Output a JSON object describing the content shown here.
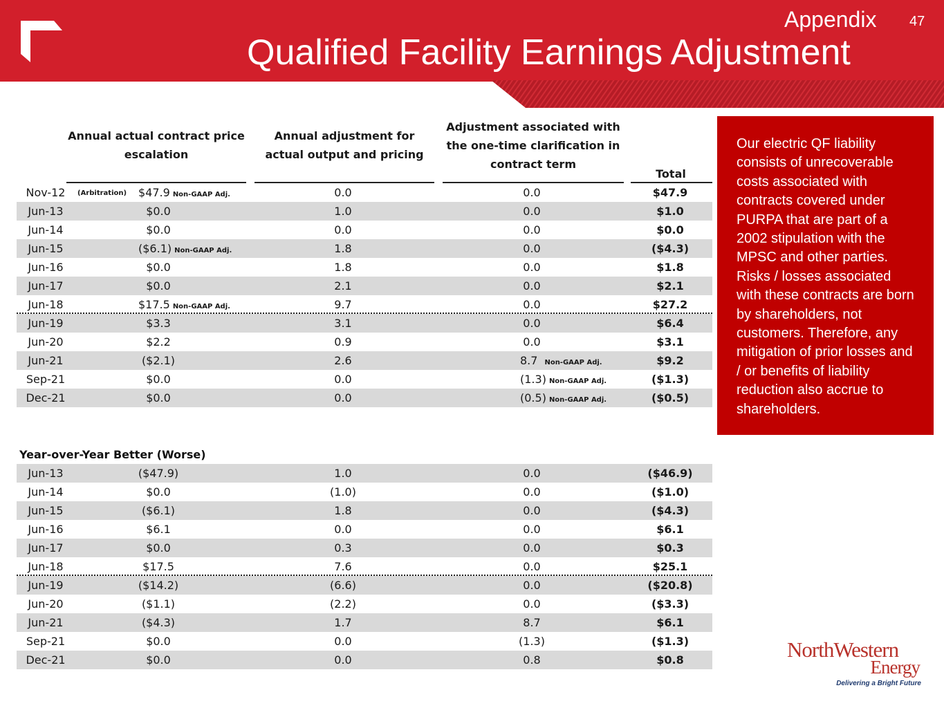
{
  "header": {
    "section": "Appendix",
    "page_number": "47",
    "title": "Qualified Facility Earnings Adjustment"
  },
  "columns": {
    "c1": "Annual actual contract price escalation",
    "c2": "Annual adjustment for actual output and pricing",
    "c3": "Adjustment associated with the one-time clarification in contract term",
    "total": "Total"
  },
  "notes": {
    "non_gaap": "Non-GAAP Adj.",
    "arbitration": "(Arbitration)"
  },
  "table1": [
    {
      "date": "Nov-12",
      "c1": "$47.9",
      "c2": "0.0",
      "c3": "0.0",
      "total": "$47.9"
    },
    {
      "date": "Jun-13",
      "c1": "$0.0",
      "c2": "1.0",
      "c3": "0.0",
      "total": "$1.0"
    },
    {
      "date": "Jun-14",
      "c1": "$0.0",
      "c2": "0.0",
      "c3": "0.0",
      "total": "$0.0"
    },
    {
      "date": "Jun-15",
      "c1": "($6.1)",
      "c2": "1.8",
      "c3": "0.0",
      "total": "($4.3)"
    },
    {
      "date": "Jun-16",
      "c1": "$0.0",
      "c2": "1.8",
      "c3": "0.0",
      "total": "$1.8"
    },
    {
      "date": "Jun-17",
      "c1": "$0.0",
      "c2": "2.1",
      "c3": "0.0",
      "total": "$2.1"
    },
    {
      "date": "Jun-18",
      "c1": "$17.5",
      "c2": "9.7",
      "c3": "0.0",
      "total": "$27.2"
    },
    {
      "date": "Jun-19",
      "c1": "$3.3",
      "c2": "3.1",
      "c3": "0.0",
      "total": "$6.4"
    },
    {
      "date": "Jun-20",
      "c1": "$2.2",
      "c2": "0.9",
      "c3": "0.0",
      "total": "$3.1"
    },
    {
      "date": "Jun-21",
      "c1": "($2.1)",
      "c2": "2.6",
      "c3": "8.7",
      "total": "$9.2"
    },
    {
      "date": "Sep-21",
      "c1": "$0.0",
      "c2": "0.0",
      "c3": "(1.3)",
      "total": "($1.3)"
    },
    {
      "date": "Dec-21",
      "c1": "$0.0",
      "c2": "0.0",
      "c3": "(0.5)",
      "total": "($0.5)"
    }
  ],
  "yoy": {
    "title": "Year-over-Year Better (Worse)",
    "rows": [
      {
        "date": "Jun-13",
        "c1": "($47.9)",
        "c2": "1.0",
        "c3": "0.0",
        "total": "($46.9)"
      },
      {
        "date": "Jun-14",
        "c1": "$0.0",
        "c2": "(1.0)",
        "c3": "0.0",
        "total": "($1.0)"
      },
      {
        "date": "Jun-15",
        "c1": "($6.1)",
        "c2": "1.8",
        "c3": "0.0",
        "total": "($4.3)"
      },
      {
        "date": "Jun-16",
        "c1": "$6.1",
        "c2": "0.0",
        "c3": "0.0",
        "total": "$6.1"
      },
      {
        "date": "Jun-17",
        "c1": "$0.0",
        "c2": "0.3",
        "c3": "0.0",
        "total": "$0.3"
      },
      {
        "date": "Jun-18",
        "c1": "$17.5",
        "c2": "7.6",
        "c3": "0.0",
        "total": "$25.1"
      },
      {
        "date": "Jun-19",
        "c1": "($14.2)",
        "c2": "(6.6)",
        "c3": "0.0",
        "total": "($20.8)"
      },
      {
        "date": "Jun-20",
        "c1": "($1.1)",
        "c2": "(2.2)",
        "c3": "0.0",
        "total": "($3.3)"
      },
      {
        "date": "Jun-21",
        "c1": "($4.3)",
        "c2": "1.7",
        "c3": "8.7",
        "total": "$6.1"
      },
      {
        "date": "Sep-21",
        "c1": "$0.0",
        "c2": "0.0",
        "c3": "(1.3)",
        "total": "($1.3)"
      },
      {
        "date": "Dec-21",
        "c1": "$0.0",
        "c2": "0.0",
        "c3": "0.8",
        "total": "$0.8"
      }
    ]
  },
  "sidebar_text": "Our electric QF liability consists of unrecoverable costs associated with contracts covered under PURPA that are part of a 2002 stipulation with the MPSC and other parties. Risks / losses associated with these contracts are born by shareholders, not customers.  Therefore, any mitigation of prior losses and / or benefits of  liability reduction also accrue to shareholders.",
  "logo": {
    "line1": "NorthWestern",
    "line2": "Energy",
    "tagline": "Delivering a Bright Future"
  },
  "colors": {
    "header_red": "#d21f2b",
    "box_red": "#c00000",
    "row_shade": "#d9d9d9"
  }
}
